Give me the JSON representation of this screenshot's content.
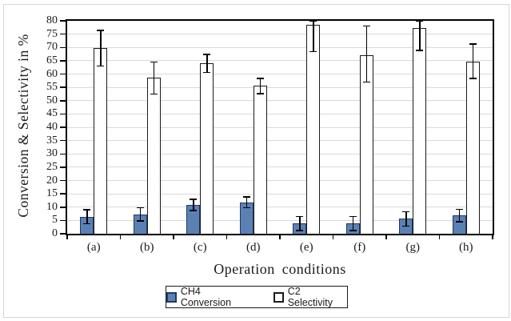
{
  "figure": {
    "background": "#FFFFFF",
    "border_color": "#D6D6D6"
  },
  "chart_data": {
    "type": "bar",
    "title": "",
    "xlabel": "Operation conditions",
    "ylabel": "Conversion & Selectivity in %",
    "categories": [
      "(a)",
      "(b)",
      "(c)",
      "(d)",
      "(e)",
      "(f)",
      "(g)",
      "(h)"
    ],
    "series": [
      {
        "name": "CH4 Conversion",
        "key": "ch4",
        "fill": "#5B81B4",
        "border": "#1F3864",
        "values": [
          6.4,
          7.3,
          10.8,
          11.8,
          3.8,
          3.8,
          5.6,
          6.8
        ],
        "err_low": [
          2.6,
          2.5,
          2.1,
          2.0,
          2.6,
          2.6,
          2.7,
          2.3
        ],
        "err_high": [
          2.6,
          2.5,
          2.1,
          2.0,
          2.6,
          2.6,
          2.7,
          2.3
        ]
      },
      {
        "name": "C2 Selectivity",
        "key": "c2",
        "fill": "#FFFFFF",
        "border": "#1A1A1A",
        "values": [
          69.7,
          58.5,
          64.0,
          55.5,
          78.4,
          67.0,
          77.4,
          64.8
        ],
        "err_low": [
          6.7,
          6.0,
          3.4,
          2.8,
          10.0,
          10.0,
          8.5,
          6.5
        ],
        "err_high": [
          6.7,
          6.0,
          3.4,
          2.8,
          1.6,
          11.0,
          2.6,
          6.5
        ]
      }
    ],
    "ylim": [
      0,
      80
    ],
    "ytick_step": 5,
    "ytick_labels": [
      "0",
      "5",
      "10",
      "15",
      "20",
      "25",
      "30",
      "35",
      "40",
      "45",
      "50",
      "55",
      "60",
      "65",
      "70",
      "75",
      "80"
    ],
    "grid": true,
    "gridline_color": "#D9D9D9",
    "axis_color": "#000000",
    "errorbar_color": "#000000",
    "legend_position": "bottom"
  }
}
